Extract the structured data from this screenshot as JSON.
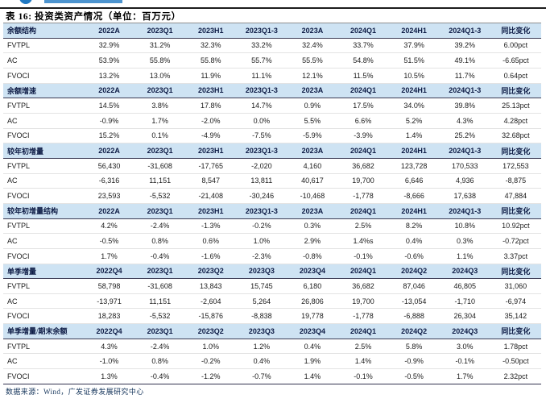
{
  "title": "表 16: 投资类资产情况（单位：百万元）",
  "footer": "数据来源：Wind，广发证券发展研究中心",
  "colors": {
    "header_bg": "#cee3f3",
    "header_text": "#0d1b45",
    "logo_blue": "#2079c3",
    "rule_dark": "#3c3c55",
    "rule_gray": "#8f8f8f"
  },
  "table": {
    "sections": [
      {
        "label": "余额结构",
        "columns": [
          "2022A",
          "2023Q1",
          "2023H1",
          "2023Q1-3",
          "2023A",
          "2024Q1",
          "2024H1",
          "2024Q1-3",
          "同比变化"
        ],
        "rows": [
          {
            "label": "FVTPL",
            "values": [
              "32.9%",
              "31.2%",
              "32.3%",
              "33.2%",
              "32.4%",
              "33.7%",
              "37.9%",
              "39.2%",
              "6.00pct"
            ]
          },
          {
            "label": "AC",
            "values": [
              "53.9%",
              "55.8%",
              "55.8%",
              "55.7%",
              "55.5%",
              "54.8%",
              "51.5%",
              "49.1%",
              "-6.65pct"
            ]
          },
          {
            "label": "FVOCI",
            "values": [
              "13.2%",
              "13.0%",
              "11.9%",
              "11.1%",
              "12.1%",
              "11.5%",
              "10.5%",
              "11.7%",
              "0.64pct"
            ]
          }
        ]
      },
      {
        "label": "余额增速",
        "columns": [
          "2022A",
          "2023Q1",
          "2023H1",
          "2023Q1-3",
          "2023A",
          "2024Q1",
          "2024H1",
          "2024Q1-3",
          "同比变化"
        ],
        "rows": [
          {
            "label": "FVTPL",
            "values": [
              "14.5%",
              "3.8%",
              "17.8%",
              "14.7%",
              "0.9%",
              "17.5%",
              "34.0%",
              "39.8%",
              "25.13pct"
            ]
          },
          {
            "label": "AC",
            "values": [
              "-0.9%",
              "1.7%",
              "-2.0%",
              "0.0%",
              "5.5%",
              "6.6%",
              "5.2%",
              "4.3%",
              "4.28pct"
            ]
          },
          {
            "label": "FVOCI",
            "values": [
              "15.2%",
              "0.1%",
              "-4.9%",
              "-7.5%",
              "-5.9%",
              "-3.9%",
              "1.4%",
              "25.2%",
              "32.68pct"
            ]
          }
        ]
      },
      {
        "label": "较年初增量",
        "columns": [
          "2022A",
          "2023Q1",
          "2023H1",
          "2023Q1-3",
          "2023A",
          "2024Q1",
          "2024H1",
          "2024Q1-3",
          "同比变化"
        ],
        "rows": [
          {
            "label": "FVTPL",
            "values": [
              "56,430",
              "-31,608",
              "-17,765",
              "-2,020",
              "4,160",
              "36,682",
              "123,728",
              "170,533",
              "172,553"
            ]
          },
          {
            "label": "AC",
            "values": [
              "-6,316",
              "11,151",
              "8,547",
              "13,811",
              "40,617",
              "19,700",
              "6,646",
              "4,936",
              "-8,875"
            ]
          },
          {
            "label": "FVOCI",
            "values": [
              "23,593",
              "-5,532",
              "-21,408",
              "-30,246",
              "-10,468",
              "-1,778",
              "-8,666",
              "17,638",
              "47,884"
            ]
          }
        ]
      },
      {
        "label": "较年初增量结构",
        "columns": [
          "2022A",
          "2023Q1",
          "2023H1",
          "2023Q1-3",
          "2023A",
          "2024Q1",
          "2024H1",
          "2024Q1-3",
          "同比变化"
        ],
        "rows": [
          {
            "label": "FVTPL",
            "values": [
              "4.2%",
              "-2.4%",
              "-1.3%",
              "-0.2%",
              "0.3%",
              "2.5%",
              "8.2%",
              "10.8%",
              "10.92pct"
            ]
          },
          {
            "label": "AC",
            "values": [
              "-0.5%",
              "0.8%",
              "0.6%",
              "1.0%",
              "2.9%",
              "1.4%s",
              "0.4%",
              "0.3%",
              "-0.72pct"
            ]
          },
          {
            "label": "FVOCI",
            "values": [
              "1.7%",
              "-0.4%",
              "-1.6%",
              "-2.3%",
              "-0.8%",
              "-0.1%",
              "-0.6%",
              "1.1%",
              "3.37pct"
            ]
          }
        ]
      },
      {
        "label": "单季增量",
        "columns": [
          "2022Q4",
          "2023Q1",
          "2023Q2",
          "2023Q3",
          "2023Q4",
          "2024Q1",
          "2024Q2",
          "2024Q3",
          "同比变化"
        ],
        "rows": [
          {
            "label": "FVTPL",
            "values": [
              "58,798",
              "-31,608",
              "13,843",
              "15,745",
              "6,180",
              "36,682",
              "87,046",
              "46,805",
              "31,060"
            ]
          },
          {
            "label": "AC",
            "values": [
              "-13,971",
              "11,151",
              "-2,604",
              "5,264",
              "26,806",
              "19,700",
              "-13,054",
              "-1,710",
              "-6,974"
            ]
          },
          {
            "label": "FVOCI",
            "values": [
              "18,283",
              "-5,532",
              "-15,876",
              "-8,838",
              "19,778",
              "-1,778",
              "-6,888",
              "26,304",
              "35,142"
            ]
          }
        ]
      },
      {
        "label": "单季增量/期末余额",
        "columns": [
          "2022Q4",
          "2023Q1",
          "2023Q2",
          "2023Q3",
          "2023Q4",
          "2024Q1",
          "2024Q2",
          "2024Q3",
          "同比变化"
        ],
        "rows": [
          {
            "label": "FVTPL",
            "values": [
              "4.3%",
              "-2.4%",
              "1.0%",
              "1.2%",
              "0.4%",
              "2.5%",
              "5.8%",
              "3.0%",
              "1.78pct"
            ]
          },
          {
            "label": "AC",
            "values": [
              "-1.0%",
              "0.8%",
              "-0.2%",
              "0.4%",
              "1.9%",
              "1.4%",
              "-0.9%",
              "-0.1%",
              "-0.50pct"
            ]
          },
          {
            "label": "FVOCI",
            "values": [
              "1.3%",
              "-0.4%",
              "-1.2%",
              "-0.7%",
              "1.4%",
              "-0.1%",
              "-0.5%",
              "1.7%",
              "2.32pct"
            ]
          }
        ]
      }
    ]
  }
}
